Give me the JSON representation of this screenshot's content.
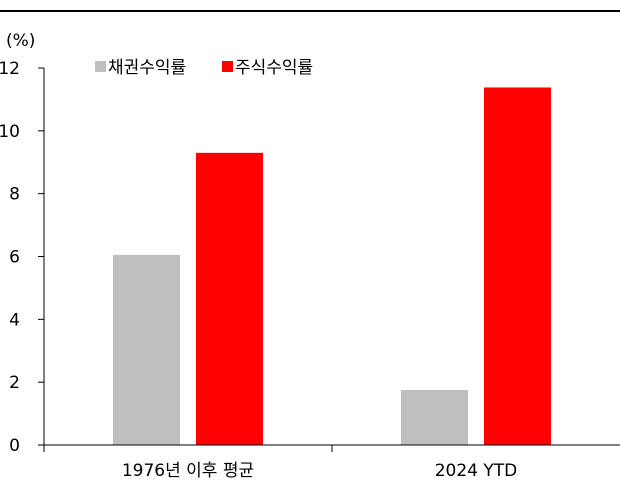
{
  "chart_data": {
    "type": "bar",
    "unit_label": "(%)",
    "categories": [
      "1976년 이후 평균",
      "2024 YTD"
    ],
    "series": [
      {
        "name": "채권수익률",
        "values": [
          6.05,
          1.75
        ],
        "color": "#bfbfbf"
      },
      {
        "name": "주식수익률",
        "values": [
          9.3,
          11.38
        ],
        "color": "#ff0000"
      }
    ],
    "ylim": [
      0,
      12
    ],
    "yticks": [
      0,
      2,
      4,
      6,
      8,
      10,
      12
    ],
    "grid": false,
    "legend_position": "top-left"
  }
}
